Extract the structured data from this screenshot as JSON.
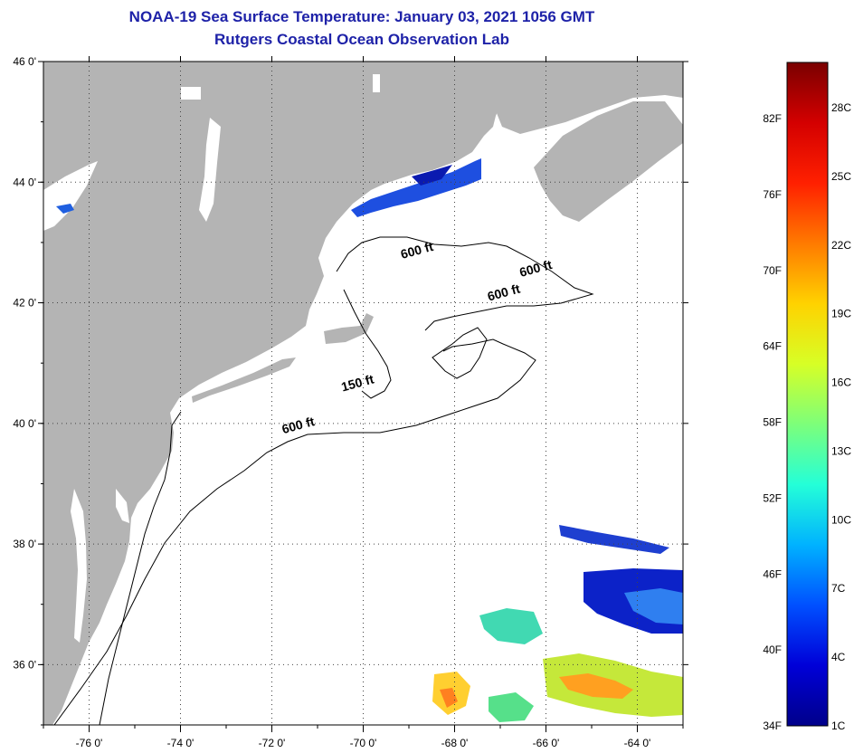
{
  "header": {
    "title_line_1": "NOAA-19 Sea Surface Temperature:  January 03, 2021 1056 GMT",
    "title_line_2": "Rutgers Coastal Ocean Observation Lab"
  },
  "map": {
    "lon_range": [
      -77,
      -63
    ],
    "lat_range": [
      35,
      46
    ],
    "lon_ticks": [
      {
        "value": -76,
        "label": "-76 0'"
      },
      {
        "value": -74,
        "label": "-74 0'"
      },
      {
        "value": -72,
        "label": "-72 0'"
      },
      {
        "value": -70,
        "label": "-70 0'"
      },
      {
        "value": -68,
        "label": "-68 0'"
      },
      {
        "value": -66,
        "label": "-66 0'"
      },
      {
        "value": -64,
        "label": "-64 0'"
      }
    ],
    "lat_ticks": [
      {
        "value": 46,
        "label": "46 0'"
      },
      {
        "value": 44,
        "label": "44 0'"
      },
      {
        "value": 42,
        "label": "42 0'"
      },
      {
        "value": 40,
        "label": "40 0'"
      },
      {
        "value": 38,
        "label": "38 0'"
      },
      {
        "value": 36,
        "label": "36 0'"
      }
    ],
    "grid": "dotted",
    "land_color": "#b4b4b4",
    "ocean_color": "#ffffff",
    "contour_labels": [
      {
        "text": "600 ft",
        "lon": -68.8,
        "lat": 42.8
      },
      {
        "text": "600 ft",
        "lon": -66.2,
        "lat": 42.5
      },
      {
        "text": "600 ft",
        "lon": -66.9,
        "lat": 42.1
      },
      {
        "text": "150 ft",
        "lon": -70.1,
        "lat": 40.6
      },
      {
        "text": "600 ft",
        "lon": -71.4,
        "lat": 39.9
      }
    ]
  },
  "colorbar": {
    "fahrenheit_labels": [
      "82F",
      "76F",
      "70F",
      "64F",
      "58F",
      "52F",
      "46F",
      "40F",
      "34F"
    ],
    "celsius_labels": [
      "28C",
      "25C",
      "22C",
      "19C",
      "16C",
      "13C",
      "10C",
      "7C",
      "4C",
      "1C"
    ],
    "colors_top_to_bottom": [
      "#7a0000",
      "#d40000",
      "#ff2000",
      "#ff7a00",
      "#ffd200",
      "#d7ff26",
      "#7dff7a",
      "#24ffd8",
      "#00b2ff",
      "#0050ff",
      "#0000d8",
      "#00008a"
    ]
  }
}
